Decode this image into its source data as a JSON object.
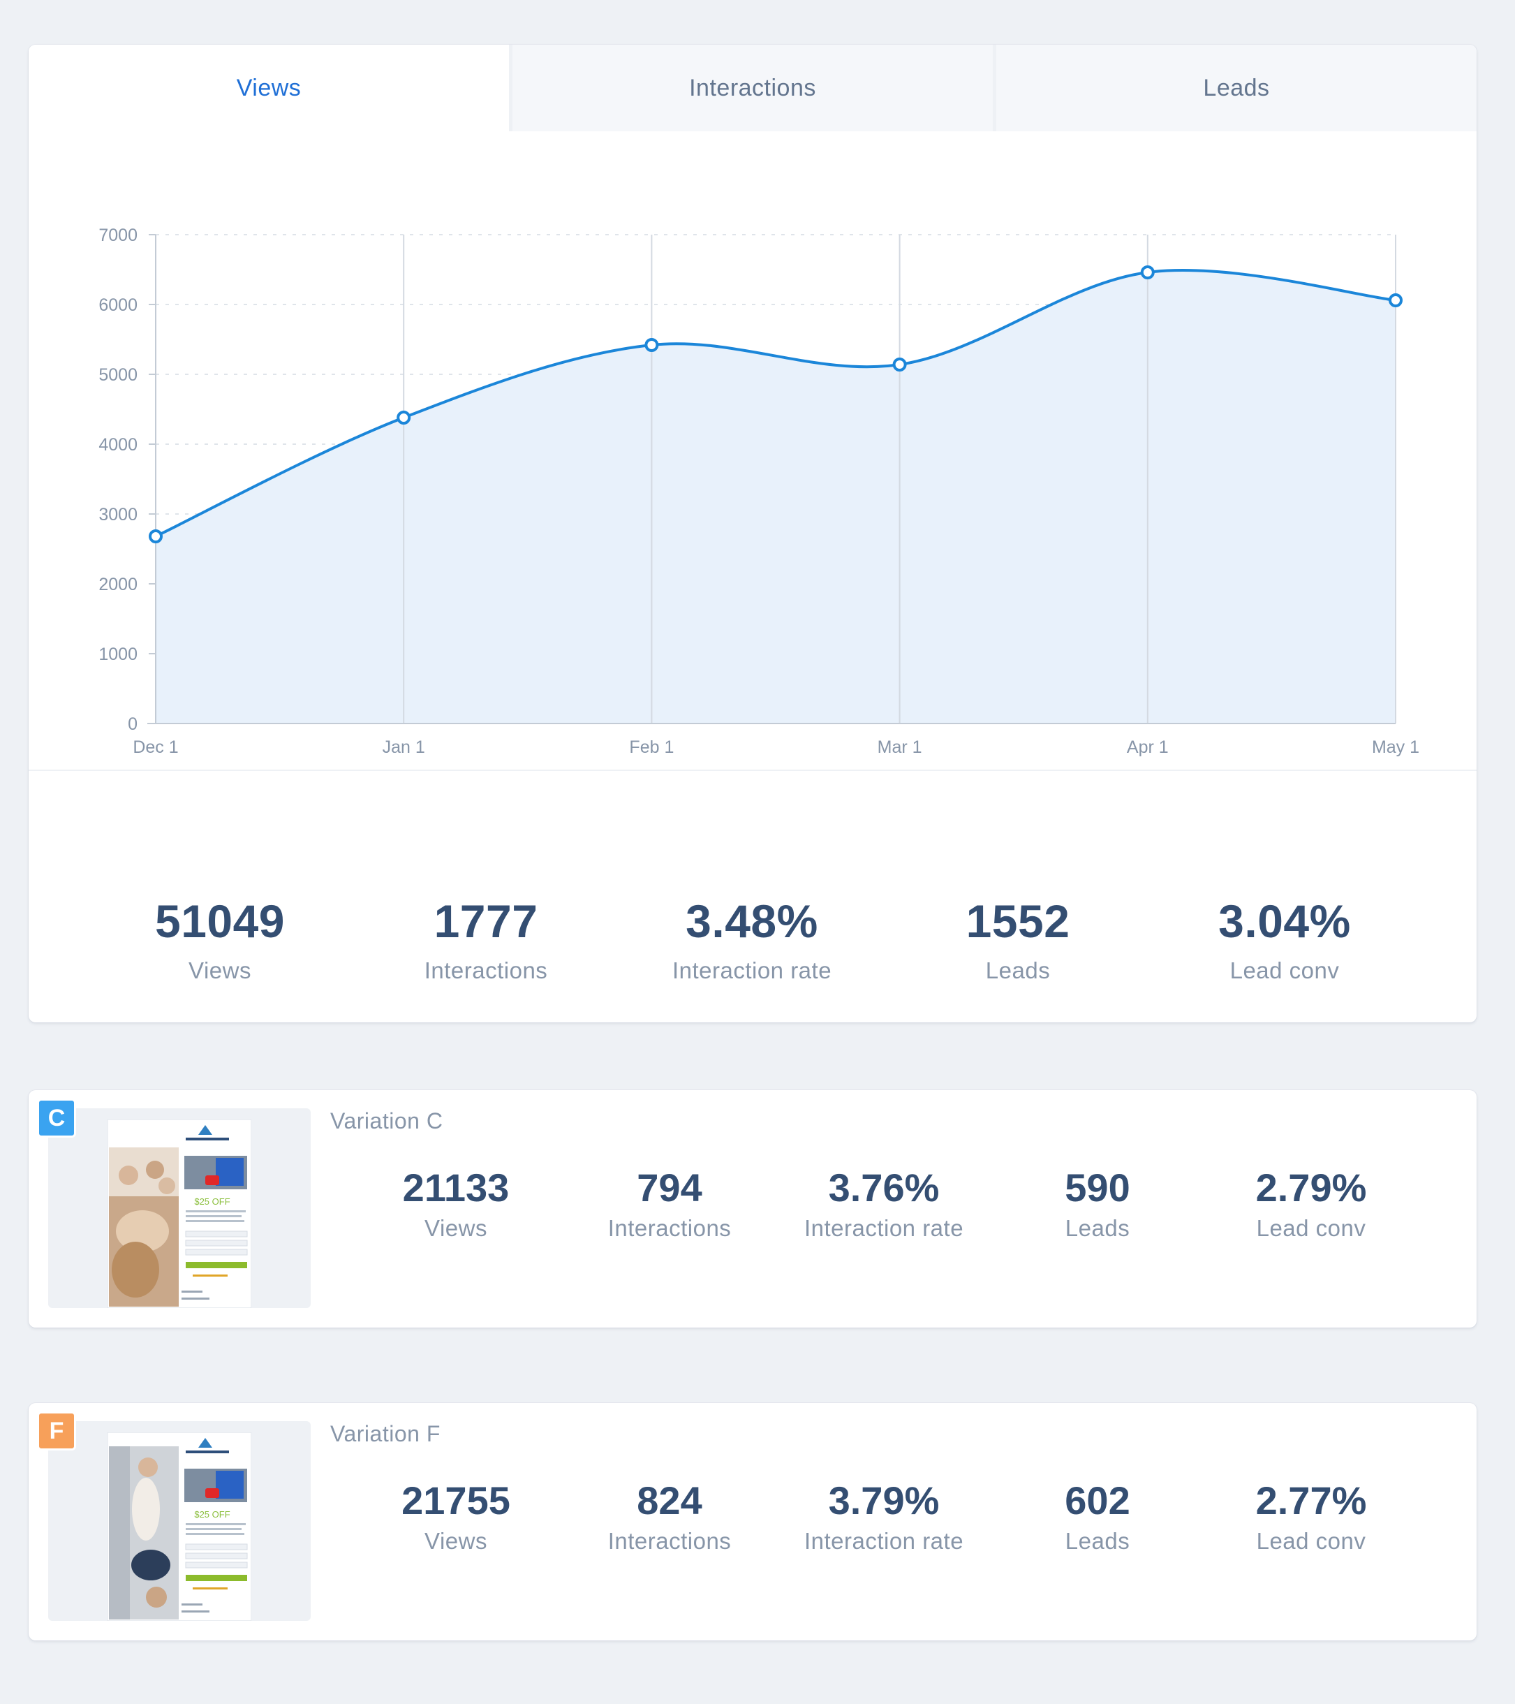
{
  "tabs": [
    {
      "label": "Views",
      "active": true
    },
    {
      "label": "Interactions",
      "active": false
    },
    {
      "label": "Leads",
      "active": false
    }
  ],
  "chart_data": {
    "type": "area",
    "x": [
      "Dec 1",
      "Jan 1",
      "Feb 1",
      "Mar 1",
      "Apr 1",
      "May 1"
    ],
    "series": [
      {
        "values": [
          2680,
          4380,
          5420,
          5140,
          6460,
          6060
        ]
      }
    ],
    "ylim": [
      0,
      7000
    ],
    "yticks": [
      "0",
      "1000",
      "2000",
      "3000",
      "4000",
      "5000",
      "6000",
      "7000"
    ],
    "grid": true,
    "colors": {
      "line": "#1b86d9",
      "fill": "#e8f1fb"
    }
  },
  "summary": [
    {
      "value": "51049",
      "label": "Views"
    },
    {
      "value": "1777",
      "label": "Interactions"
    },
    {
      "value": "3.48%",
      "label": "Interaction rate"
    },
    {
      "value": "1552",
      "label": "Leads"
    },
    {
      "value": "3.04%",
      "label": "Lead conv"
    }
  ],
  "variations": [
    {
      "badge": "C",
      "badge_color": "#3aa3f0",
      "name": "Variation C",
      "thumb": {
        "offer": "$25 OFF"
      },
      "stats": [
        {
          "value": "21133",
          "label": "Views"
        },
        {
          "value": "794",
          "label": "Interactions"
        },
        {
          "value": "3.76%",
          "label": "Interaction rate"
        },
        {
          "value": "590",
          "label": "Leads"
        },
        {
          "value": "2.79%",
          "label": "Lead conv"
        }
      ]
    },
    {
      "badge": "F",
      "badge_color": "#f7a05a",
      "name": "Variation F",
      "thumb": {
        "offer": "$25 OFF"
      },
      "stats": [
        {
          "value": "21755",
          "label": "Views"
        },
        {
          "value": "824",
          "label": "Interactions"
        },
        {
          "value": "3.79%",
          "label": "Interaction rate"
        },
        {
          "value": "602",
          "label": "Leads"
        },
        {
          "value": "2.77%",
          "label": "Lead conv"
        }
      ]
    }
  ]
}
